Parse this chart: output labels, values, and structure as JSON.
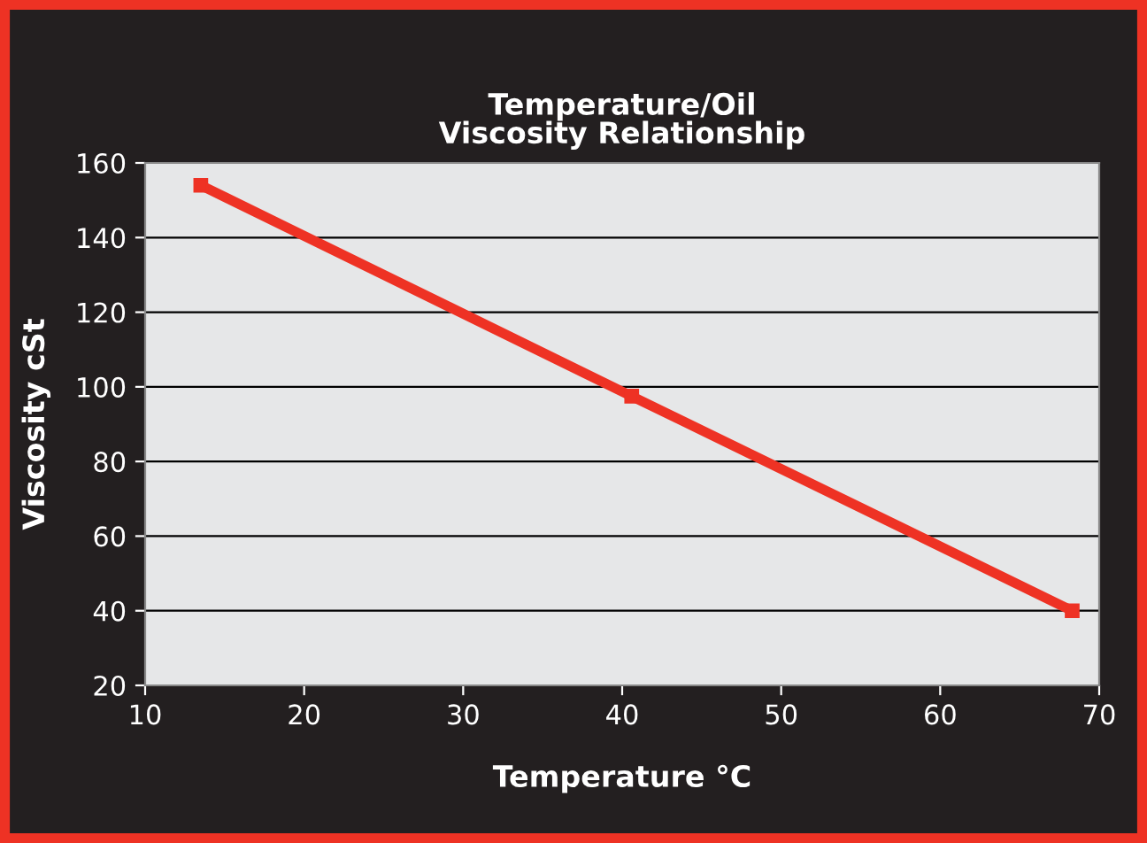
{
  "chart_data": {
    "type": "line",
    "title": "Temperature/Oil\nViscosity Relationship",
    "xlabel": "Temperature °C",
    "ylabel": "Viscosity cSt",
    "x": [
      13.5,
      40.6,
      68.3
    ],
    "series": [
      {
        "color": "#ee3224",
        "values": [
          154,
          97.5,
          40
        ]
      }
    ],
    "xlim": [
      10,
      70
    ],
    "xticks": [
      10,
      20,
      30,
      40,
      50,
      60,
      70
    ],
    "ylim": [
      20,
      160
    ],
    "yticks": [
      20,
      40,
      60,
      80,
      100,
      120,
      140,
      160
    ],
    "grid": "y",
    "marker": "square",
    "line_style": "solid",
    "legend": false
  }
}
